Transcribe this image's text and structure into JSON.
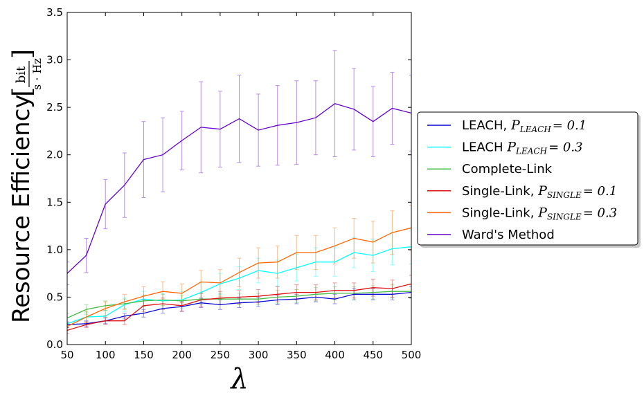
{
  "chart_data": {
    "type": "line",
    "xlabel": "λ",
    "ylabel": "Resource Efficiency",
    "ylabel_unit_num": "bit",
    "ylabel_unit_den": "s · Hz",
    "xlim": [
      50,
      500
    ],
    "ylim": [
      0,
      3.5
    ],
    "xticks": [
      "50",
      "100",
      "150",
      "200",
      "250",
      "300",
      "350",
      "400",
      "450",
      "500"
    ],
    "yticks": [
      "0.0",
      "0.5",
      "1.0",
      "1.5",
      "2.0",
      "2.5",
      "3.0",
      "3.5"
    ],
    "legend_position": "right (outside plot)",
    "x": [
      50,
      75,
      100,
      125,
      150,
      175,
      200,
      225,
      250,
      275,
      300,
      325,
      350,
      375,
      400,
      425,
      450,
      475,
      500
    ],
    "series": [
      {
        "name": "LEACH, ",
        "name_math": "P_{LEACH} = 0.1",
        "color": "#0a0ad2",
        "values": [
          0.21,
          0.22,
          0.25,
          0.3,
          0.33,
          0.38,
          0.4,
          0.44,
          0.42,
          0.44,
          0.45,
          0.47,
          0.48,
          0.5,
          0.48,
          0.53,
          0.53,
          0.53,
          0.55
        ],
        "errors": [
          0.03,
          0.03,
          0.03,
          0.03,
          0.04,
          0.05,
          0.05,
          0.05,
          0.05,
          0.05,
          0.05,
          0.05,
          0.05,
          0.05,
          0.05,
          0.06,
          0.06,
          0.06,
          0.06
        ]
      },
      {
        "name": "LEACH ",
        "name_math": "P_{LEACH} = 0.3",
        "color": "#00ffff",
        "values": [
          0.22,
          0.29,
          0.3,
          0.42,
          0.48,
          0.46,
          0.47,
          0.55,
          0.64,
          0.7,
          0.78,
          0.75,
          0.81,
          0.87,
          0.87,
          0.97,
          0.94,
          1.01,
          1.03
        ],
        "errors": [
          0.04,
          0.05,
          0.06,
          0.07,
          0.08,
          0.08,
          0.09,
          0.1,
          0.11,
          0.12,
          0.13,
          0.14,
          0.14,
          0.15,
          0.15,
          0.16,
          0.17,
          0.17,
          0.18
        ]
      },
      {
        "name": "Complete-Link",
        "name_math": "",
        "color": "#44bb44",
        "values": [
          0.28,
          0.37,
          0.41,
          0.43,
          0.46,
          0.47,
          0.46,
          0.48,
          0.48,
          0.48,
          0.48,
          0.5,
          0.51,
          0.53,
          0.54,
          0.54,
          0.55,
          0.56,
          0.56
        ],
        "errors": [
          0.05,
          0.05,
          0.05,
          0.05,
          0.06,
          0.06,
          0.06,
          0.06,
          0.06,
          0.06,
          0.06,
          0.07,
          0.07,
          0.07,
          0.07,
          0.07,
          0.07,
          0.07,
          0.07
        ]
      },
      {
        "name": "Single-Link, ",
        "name_math": "P_{SINGLE} = 0.1",
        "color": "#dd1111",
        "values": [
          0.15,
          0.21,
          0.25,
          0.25,
          0.41,
          0.43,
          0.41,
          0.47,
          0.49,
          0.5,
          0.51,
          0.53,
          0.55,
          0.55,
          0.57,
          0.57,
          0.6,
          0.59,
          0.64
        ],
        "errors": [
          0.03,
          0.03,
          0.04,
          0.04,
          0.06,
          0.06,
          0.06,
          0.07,
          0.07,
          0.07,
          0.07,
          0.08,
          0.08,
          0.08,
          0.08,
          0.08,
          0.09,
          0.09,
          0.09
        ]
      },
      {
        "name": "Single-Link, ",
        "name_math": "P_{SINGLE} = 0.3",
        "color": "#ff6600",
        "values": [
          0.19,
          0.29,
          0.38,
          0.45,
          0.51,
          0.56,
          0.54,
          0.66,
          0.65,
          0.76,
          0.86,
          0.87,
          0.97,
          0.97,
          1.04,
          1.12,
          1.08,
          1.18,
          1.23
        ],
        "errors": [
          0.04,
          0.06,
          0.07,
          0.08,
          0.1,
          0.1,
          0.1,
          0.12,
          0.14,
          0.15,
          0.16,
          0.17,
          0.18,
          0.18,
          0.19,
          0.21,
          0.22,
          0.23,
          0.24
        ]
      },
      {
        "name": "Ward's Method",
        "name_math": "",
        "color": "#6600cc",
        "values": [
          0.75,
          0.94,
          1.48,
          1.68,
          1.95,
          2.0,
          2.15,
          2.29,
          2.27,
          2.38,
          2.26,
          2.31,
          2.34,
          2.39,
          2.54,
          2.48,
          2.35,
          2.49,
          2.44
        ],
        "errors": [
          0.12,
          0.18,
          0.26,
          0.34,
          0.4,
          0.39,
          0.31,
          0.48,
          0.4,
          0.46,
          0.38,
          0.42,
          0.44,
          0.39,
          0.56,
          0.43,
          0.37,
          0.38,
          0.4
        ]
      }
    ]
  }
}
